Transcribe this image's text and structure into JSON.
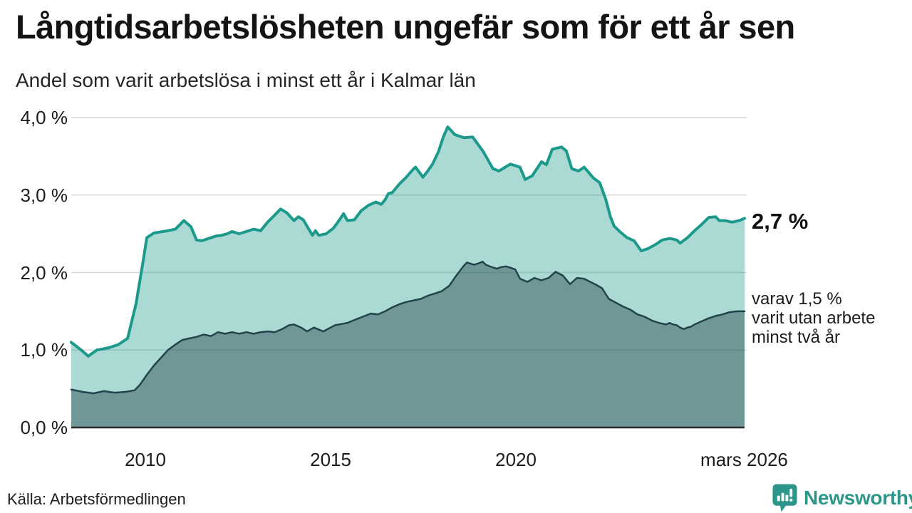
{
  "title": "Långtidsarbetslösheten ungefär som för ett år sen",
  "subtitle": "Andel som varit arbetslösa i minst ett år i Kalmar län",
  "annotations": {
    "series1_end_label": "2,7 %",
    "series2_end_label_lines": [
      "varav 1,5 %",
      "varit utan arbete",
      "minst två år"
    ]
  },
  "footer": {
    "source": "Källa: Arbetsförmedlingen",
    "logo_brand": "Newsworthy",
    "logo_color": "#2c968b"
  },
  "colors": {
    "series1_line": "#1b9a8c",
    "series1_fill": "rgba(27,154,140,0.37)",
    "series2_line": "#23434b",
    "series2_fill": "rgba(35,67,73,0.44)",
    "gridline": "#d8d8d8",
    "baseline": "#2e2e2e",
    "text": "#1c1c1c"
  },
  "chart_data": {
    "type": "area",
    "title": "Långtidsarbetslösheten ungefär som för ett år sen",
    "subtitle": "Andel som varit arbetslösa i minst ett år i Kalmar län",
    "xlabel": "",
    "ylabel": "",
    "x_unit": "decimal_year",
    "y_unit": "percent",
    "xlim": [
      2008.0,
      2026.17
    ],
    "ylim": [
      0,
      4
    ],
    "grid": true,
    "legend_position": "right-annotations",
    "y_ticks": [
      {
        "v": 0,
        "label": "0,0 %"
      },
      {
        "v": 1,
        "label": "1,0 %"
      },
      {
        "v": 2,
        "label": "2,0 %"
      },
      {
        "v": 3,
        "label": "3,0 %"
      },
      {
        "v": 4,
        "label": "4,0 %"
      }
    ],
    "x_ticks": [
      {
        "v": 2010,
        "label": "2010"
      },
      {
        "v": 2015,
        "label": "2015"
      },
      {
        "v": 2020,
        "label": "2020"
      },
      {
        "v": 2026.16,
        "label": "mars 2026"
      }
    ],
    "series": [
      {
        "name": "Andel arbetslösa minst ett år",
        "end_value_label": "2,7 %",
        "color": "#1b9a8c",
        "fill": "rgba(27,154,140,0.37)",
        "stroke_width": 4,
        "points": [
          [
            2008.0,
            1.1
          ],
          [
            2008.27,
            1.0
          ],
          [
            2008.46,
            0.92
          ],
          [
            2008.69,
            1.0
          ],
          [
            2009.02,
            1.03
          ],
          [
            2009.27,
            1.07
          ],
          [
            2009.52,
            1.15
          ],
          [
            2009.75,
            1.6
          ],
          [
            2009.94,
            2.15
          ],
          [
            2010.04,
            2.45
          ],
          [
            2010.23,
            2.51
          ],
          [
            2010.61,
            2.54
          ],
          [
            2010.81,
            2.56
          ],
          [
            2011.04,
            2.67
          ],
          [
            2011.23,
            2.59
          ],
          [
            2011.38,
            2.42
          ],
          [
            2011.52,
            2.41
          ],
          [
            2011.71,
            2.44
          ],
          [
            2011.9,
            2.47
          ],
          [
            2012.05,
            2.48
          ],
          [
            2012.21,
            2.5
          ],
          [
            2012.34,
            2.53
          ],
          [
            2012.53,
            2.5
          ],
          [
            2012.73,
            2.53
          ],
          [
            2012.92,
            2.56
          ],
          [
            2013.11,
            2.54
          ],
          [
            2013.3,
            2.65
          ],
          [
            2013.49,
            2.74
          ],
          [
            2013.65,
            2.82
          ],
          [
            2013.82,
            2.77
          ],
          [
            2014.01,
            2.67
          ],
          [
            2014.13,
            2.72
          ],
          [
            2014.26,
            2.68
          ],
          [
            2014.41,
            2.56
          ],
          [
            2014.51,
            2.48
          ],
          [
            2014.59,
            2.54
          ],
          [
            2014.68,
            2.48
          ],
          [
            2014.88,
            2.5
          ],
          [
            2015.07,
            2.57
          ],
          [
            2015.18,
            2.64
          ],
          [
            2015.35,
            2.76
          ],
          [
            2015.45,
            2.67
          ],
          [
            2015.64,
            2.68
          ],
          [
            2015.83,
            2.8
          ],
          [
            2016.03,
            2.87
          ],
          [
            2016.22,
            2.91
          ],
          [
            2016.37,
            2.88
          ],
          [
            2016.47,
            2.94
          ],
          [
            2016.56,
            3.02
          ],
          [
            2016.66,
            3.03
          ],
          [
            2016.85,
            3.14
          ],
          [
            2017.04,
            3.23
          ],
          [
            2017.24,
            3.34
          ],
          [
            2017.29,
            3.36
          ],
          [
            2017.49,
            3.23
          ],
          [
            2017.62,
            3.31
          ],
          [
            2017.75,
            3.4
          ],
          [
            2017.91,
            3.56
          ],
          [
            2018.04,
            3.75
          ],
          [
            2018.16,
            3.88
          ],
          [
            2018.35,
            3.78
          ],
          [
            2018.6,
            3.74
          ],
          [
            2018.83,
            3.75
          ],
          [
            2019.12,
            3.56
          ],
          [
            2019.38,
            3.34
          ],
          [
            2019.54,
            3.31
          ],
          [
            2019.85,
            3.4
          ],
          [
            2020.11,
            3.36
          ],
          [
            2020.25,
            3.2
          ],
          [
            2020.44,
            3.25
          ],
          [
            2020.69,
            3.43
          ],
          [
            2020.82,
            3.39
          ],
          [
            2020.98,
            3.59
          ],
          [
            2021.23,
            3.62
          ],
          [
            2021.36,
            3.57
          ],
          [
            2021.51,
            3.34
          ],
          [
            2021.69,
            3.31
          ],
          [
            2021.84,
            3.36
          ],
          [
            2022.09,
            3.22
          ],
          [
            2022.26,
            3.16
          ],
          [
            2022.42,
            2.95
          ],
          [
            2022.55,
            2.72
          ],
          [
            2022.65,
            2.6
          ],
          [
            2022.8,
            2.53
          ],
          [
            2023.0,
            2.45
          ],
          [
            2023.19,
            2.41
          ],
          [
            2023.38,
            2.28
          ],
          [
            2023.57,
            2.31
          ],
          [
            2023.76,
            2.36
          ],
          [
            2023.95,
            2.42
          ],
          [
            2024.15,
            2.44
          ],
          [
            2024.34,
            2.42
          ],
          [
            2024.43,
            2.38
          ],
          [
            2024.63,
            2.45
          ],
          [
            2024.82,
            2.54
          ],
          [
            2025.01,
            2.62
          ],
          [
            2025.2,
            2.71
          ],
          [
            2025.39,
            2.72
          ],
          [
            2025.49,
            2.67
          ],
          [
            2025.64,
            2.67
          ],
          [
            2025.83,
            2.65
          ],
          [
            2026.03,
            2.67
          ],
          [
            2026.17,
            2.7
          ]
        ]
      },
      {
        "name": "varav utan arbete minst två år",
        "end_value_label": "1,5 %",
        "color": "#23434b",
        "fill": "rgba(35,67,73,0.44)",
        "stroke_width": 2.5,
        "points": [
          [
            2008.0,
            0.49
          ],
          [
            2008.31,
            0.46
          ],
          [
            2008.6,
            0.44
          ],
          [
            2008.88,
            0.47
          ],
          [
            2009.17,
            0.45
          ],
          [
            2009.46,
            0.46
          ],
          [
            2009.71,
            0.48
          ],
          [
            2009.85,
            0.55
          ],
          [
            2010.04,
            0.68
          ],
          [
            2010.23,
            0.8
          ],
          [
            2010.42,
            0.9
          ],
          [
            2010.61,
            1.0
          ],
          [
            2010.81,
            1.07
          ],
          [
            2011.0,
            1.13
          ],
          [
            2011.19,
            1.15
          ],
          [
            2011.38,
            1.17
          ],
          [
            2011.57,
            1.2
          ],
          [
            2011.77,
            1.18
          ],
          [
            2011.96,
            1.23
          ],
          [
            2012.15,
            1.21
          ],
          [
            2012.34,
            1.23
          ],
          [
            2012.53,
            1.21
          ],
          [
            2012.73,
            1.23
          ],
          [
            2012.92,
            1.21
          ],
          [
            2013.11,
            1.23
          ],
          [
            2013.3,
            1.24
          ],
          [
            2013.49,
            1.23
          ],
          [
            2013.69,
            1.27
          ],
          [
            2013.88,
            1.32
          ],
          [
            2014.01,
            1.33
          ],
          [
            2014.2,
            1.29
          ],
          [
            2014.36,
            1.24
          ],
          [
            2014.55,
            1.29
          ],
          [
            2014.8,
            1.24
          ],
          [
            2015.12,
            1.32
          ],
          [
            2015.45,
            1.35
          ],
          [
            2015.76,
            1.41
          ],
          [
            2016.08,
            1.47
          ],
          [
            2016.28,
            1.46
          ],
          [
            2016.47,
            1.5
          ],
          [
            2016.66,
            1.55
          ],
          [
            2016.85,
            1.59
          ],
          [
            2017.04,
            1.62
          ],
          [
            2017.24,
            1.64
          ],
          [
            2017.43,
            1.66
          ],
          [
            2017.62,
            1.7
          ],
          [
            2017.81,
            1.73
          ],
          [
            2018.0,
            1.76
          ],
          [
            2018.2,
            1.83
          ],
          [
            2018.39,
            1.96
          ],
          [
            2018.58,
            2.08
          ],
          [
            2018.68,
            2.13
          ],
          [
            2018.87,
            2.1
          ],
          [
            2019.0,
            2.12
          ],
          [
            2019.1,
            2.14
          ],
          [
            2019.19,
            2.1
          ],
          [
            2019.35,
            2.07
          ],
          [
            2019.48,
            2.05
          ],
          [
            2019.6,
            2.07
          ],
          [
            2019.73,
            2.08
          ],
          [
            2019.87,
            2.06
          ],
          [
            2019.98,
            2.04
          ],
          [
            2020.11,
            1.92
          ],
          [
            2020.31,
            1.88
          ],
          [
            2020.5,
            1.93
          ],
          [
            2020.69,
            1.9
          ],
          [
            2020.88,
            1.93
          ],
          [
            2021.07,
            2.01
          ],
          [
            2021.27,
            1.96
          ],
          [
            2021.46,
            1.85
          ],
          [
            2021.65,
            1.93
          ],
          [
            2021.84,
            1.92
          ],
          [
            2022.17,
            1.84
          ],
          [
            2022.32,
            1.8
          ],
          [
            2022.51,
            1.66
          ],
          [
            2022.7,
            1.61
          ],
          [
            2022.9,
            1.56
          ],
          [
            2023.09,
            1.52
          ],
          [
            2023.28,
            1.46
          ],
          [
            2023.47,
            1.43
          ],
          [
            2023.67,
            1.38
          ],
          [
            2023.86,
            1.35
          ],
          [
            2024.05,
            1.33
          ],
          [
            2024.15,
            1.35
          ],
          [
            2024.24,
            1.33
          ],
          [
            2024.34,
            1.32
          ],
          [
            2024.43,
            1.29
          ],
          [
            2024.53,
            1.27
          ],
          [
            2024.63,
            1.29
          ],
          [
            2024.72,
            1.3
          ],
          [
            2024.82,
            1.33
          ],
          [
            2025.01,
            1.37
          ],
          [
            2025.2,
            1.41
          ],
          [
            2025.39,
            1.44
          ],
          [
            2025.58,
            1.46
          ],
          [
            2025.77,
            1.49
          ],
          [
            2025.97,
            1.5
          ],
          [
            2026.17,
            1.5
          ]
        ]
      }
    ]
  }
}
